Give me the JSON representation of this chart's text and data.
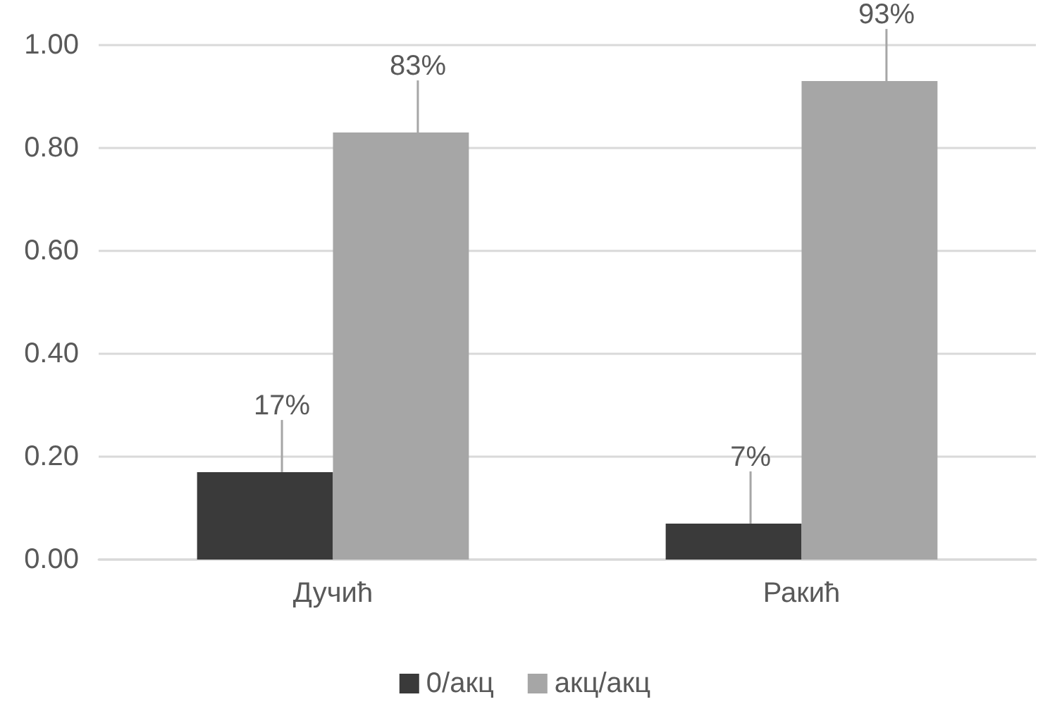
{
  "chart_data": {
    "type": "bar",
    "categories": [
      "Дучић",
      "Ракић"
    ],
    "series": [
      {
        "name": "0/акц",
        "color": "#3a3a3a",
        "values": [
          0.17,
          0.07
        ],
        "value_labels": [
          "17%",
          "7%"
        ]
      },
      {
        "name": "акц/акц",
        "color": "#a6a6a6",
        "values": [
          0.83,
          0.93
        ],
        "value_labels": [
          "83%",
          "93%"
        ]
      }
    ],
    "ylim": [
      0,
      1
    ],
    "yticks": [
      {
        "value": 0,
        "label": "0.00"
      },
      {
        "value": 0.2,
        "label": "0.20"
      },
      {
        "value": 0.4,
        "label": "0.40"
      },
      {
        "value": 0.6,
        "label": "0.60"
      },
      {
        "value": 0.8,
        "label": "0.80"
      },
      {
        "value": 1,
        "label": "1.00"
      }
    ],
    "grid": "y",
    "legend": "bottom"
  }
}
